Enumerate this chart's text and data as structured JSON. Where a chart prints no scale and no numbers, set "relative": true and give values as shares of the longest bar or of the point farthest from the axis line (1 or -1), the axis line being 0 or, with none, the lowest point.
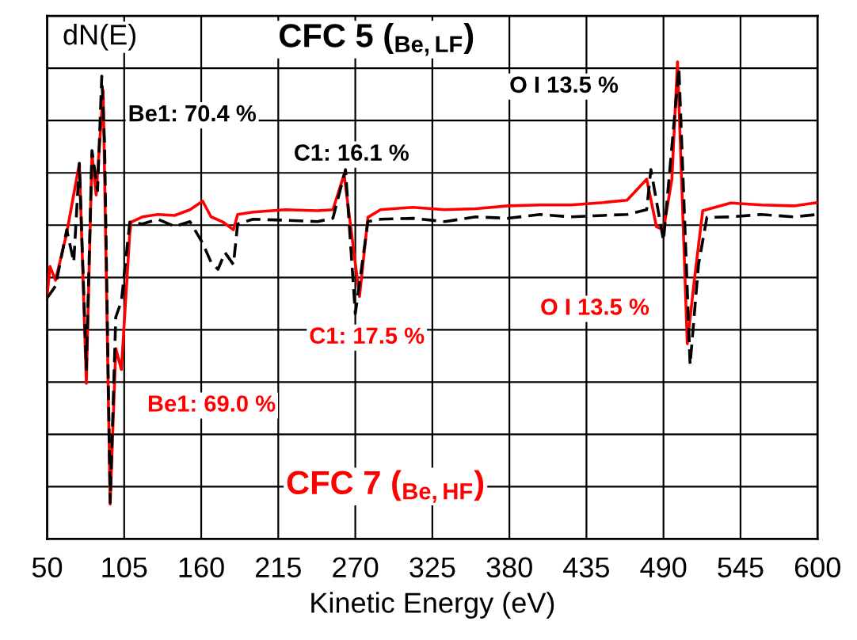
{
  "chart_data": {
    "type": "line",
    "relative": true,
    "xlabel": "Kinetic Energy (eV)",
    "ylabel": "dN(E)",
    "xlim": [
      50,
      600
    ],
    "xticks": [
      50,
      105,
      160,
      215,
      270,
      325,
      380,
      435,
      490,
      545,
      600
    ],
    "grid": true,
    "marker": "none",
    "series": [
      {
        "name": "CFC 5 ($_{Be,LF}$)",
        "color": "#000000",
        "line_style": "dashed",
        "x": [
          50,
          56,
          64,
          69,
          73,
          78,
          82,
          86,
          89,
          91,
          95,
          99,
          103,
          109,
          118,
          129,
          141,
          152,
          161,
          167,
          172,
          177,
          183,
          186,
          197,
          220,
          243,
          254,
          263,
          270,
          279,
          288,
          311,
          334,
          356,
          379,
          402,
          424,
          447,
          464,
          478,
          481,
          490,
          501,
          509,
          515,
          521,
          538,
          560,
          583,
          600
        ],
        "values": [
          0.505,
          0.53,
          0.648,
          0.58,
          0.787,
          0.355,
          0.814,
          0.73,
          0.97,
          0.83,
          0.076,
          0.465,
          0.498,
          0.664,
          0.66,
          0.67,
          0.655,
          0.665,
          0.62,
          0.58,
          0.565,
          0.6,
          0.575,
          0.66,
          0.67,
          0.668,
          0.665,
          0.672,
          0.774,
          0.472,
          0.665,
          0.67,
          0.672,
          0.665,
          0.675,
          0.672,
          0.68,
          0.675,
          0.678,
          0.68,
          0.69,
          0.774,
          0.625,
          0.987,
          0.365,
          0.575,
          0.674,
          0.675,
          0.68,
          0.675,
          0.68
        ]
      },
      {
        "name": "CFC 7 ($_{Be,HF}$)",
        "color": "#ff0000",
        "line_style": "solid",
        "x": [
          50,
          52,
          56,
          64,
          73,
          78,
          82,
          85,
          90,
          95,
          99,
          103,
          109,
          110,
          118,
          129,
          141,
          152,
          161,
          167,
          175,
          183,
          186,
          197,
          220,
          243,
          254,
          262,
          273,
          279,
          288,
          311,
          334,
          356,
          379,
          402,
          424,
          447,
          464,
          478,
          485,
          490,
          496,
          500,
          507,
          512,
          518,
          538,
          560,
          583,
          600
        ],
        "values": [
          0.508,
          0.571,
          0.542,
          0.641,
          0.787,
          0.326,
          0.807,
          0.721,
          0.94,
          0.073,
          0.399,
          0.355,
          0.641,
          0.664,
          0.675,
          0.68,
          0.678,
          0.69,
          0.708,
          0.675,
          0.665,
          0.648,
          0.68,
          0.685,
          0.69,
          0.688,
          0.69,
          0.764,
          0.508,
          0.674,
          0.69,
          0.695,
          0.69,
          0.692,
          0.698,
          0.7,
          0.7,
          0.705,
          0.71,
          0.754,
          0.654,
          0.648,
          0.754,
          1.0,
          0.409,
          0.542,
          0.688,
          0.704,
          0.7,
          0.698,
          0.705
        ]
      }
    ],
    "annotations": [
      "Be1: 70.4 %",
      "C1: 16.1 %",
      "O I 13.5 %",
      "C1: 17.5 %",
      "Be1: 69.0 %",
      "O I 13.5 %"
    ]
  }
}
